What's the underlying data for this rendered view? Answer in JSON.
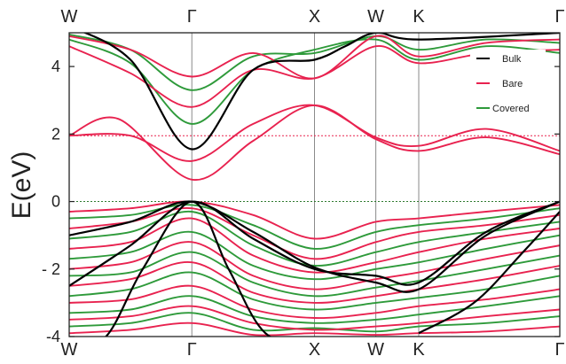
{
  "chart_data": {
    "type": "line",
    "title": "",
    "xlabel": "",
    "ylabel": "E(eV)",
    "ylim": [
      -4,
      5
    ],
    "yticks": [
      {
        "value": -4,
        "label": "-4"
      },
      {
        "value": -2,
        "label": "- 2"
      },
      {
        "value": 0,
        "label": "0"
      },
      {
        "value": 2,
        "label": "2"
      },
      {
        "value": 4,
        "label": "4"
      }
    ],
    "k_path": [
      {
        "label": "W",
        "pos": 0
      },
      {
        "label": "Γ",
        "pos": 1
      },
      {
        "label": "X",
        "pos": 2
      },
      {
        "label": "W",
        "pos": 2.5
      },
      {
        "label": "K",
        "pos": 2.85
      },
      {
        "label": "Γ",
        "pos": 4
      }
    ],
    "vertical_lines_at": [
      1,
      2,
      2.5,
      2.85
    ],
    "reference_lines": [
      {
        "y": 0,
        "style": "dotted",
        "color": "#2f7a2f"
      },
      {
        "y": 1.95,
        "style": "dotted",
        "color": "#e8224f"
      }
    ],
    "legend": {
      "placement": "top-right",
      "entries": [
        "Bulk",
        "Bare",
        "Covered"
      ]
    },
    "grid": false,
    "colors": {
      "Bulk": "#000000",
      "Bare": "#e8224f",
      "Covered": "#2e9a3a"
    },
    "series": [
      {
        "name": "Bulk",
        "bands": [
          {
            "x": [
              0,
              0.5,
              1,
              1.5,
              2,
              2.25,
              2.5,
              2.85,
              4
            ],
            "y": [
              5.2,
              4.2,
              1.55,
              3.9,
              4.2,
              4.6,
              5.0,
              4.8,
              5.0
            ]
          },
          {
            "x": [
              0,
              0.5,
              1,
              1.5,
              2,
              2.5,
              2.85,
              3.4,
              4
            ],
            "y": [
              -1.0,
              -0.6,
              0,
              -0.9,
              -1.95,
              -2.4,
              -2.6,
              -1.0,
              0
            ]
          },
          {
            "x": [
              0,
              0.5,
              1,
              1.5,
              2,
              2.5,
              2.85,
              3.4,
              4
            ],
            "y": [
              -2.5,
              -1.3,
              0,
              -1.1,
              -2.0,
              -2.2,
              -2.4,
              -0.9,
              0
            ]
          },
          {
            "x": [
              0,
              0.3,
              0.6,
              1,
              1.3,
              1.6,
              2
            ],
            "y": [
              -4.3,
              -4.0,
              -2.0,
              0,
              -2.0,
              -3.9,
              -4.3
            ]
          },
          {
            "x": [
              2.85,
              3.3,
              3.7,
              4
            ],
            "y": [
              -3.9,
              -3.0,
              -1.5,
              -0.3
            ]
          }
        ]
      },
      {
        "name": "Bare",
        "bands": [
          {
            "x": [
              0,
              0.5,
              1,
              1.5,
              2,
              2.5,
              2.85,
              3.4,
              4
            ],
            "y": [
              1.95,
              1.95,
              1.2,
              2.3,
              2.85,
              1.9,
              1.65,
              2.15,
              1.5
            ]
          },
          {
            "x": [
              0,
              0.4,
              1,
              1.5,
              2,
              2.5,
              2.85,
              3.4,
              4
            ],
            "y": [
              1.95,
              2.45,
              0.65,
              1.8,
              2.85,
              1.85,
              1.5,
              1.9,
              1.4
            ]
          },
          {
            "x": [
              0,
              0.5,
              1,
              1.5,
              2,
              2.5,
              2.85,
              3.4,
              4
            ],
            "y": [
              4.9,
              4.5,
              3.7,
              4.4,
              3.65,
              4.9,
              4.3,
              4.7,
              4.8
            ]
          },
          {
            "x": [
              0,
              0.5,
              1,
              1.5,
              2,
              2.5,
              2.85,
              3.4,
              4
            ],
            "y": [
              4.6,
              3.8,
              2.8,
              3.9,
              3.65,
              4.6,
              4.1,
              4.4,
              4.5
            ]
          },
          {
            "x": [
              0,
              0.5,
              1,
              1.5,
              2,
              2.5,
              2.85,
              3.4,
              4
            ],
            "y": [
              -0.3,
              -0.2,
              0,
              -0.4,
              -1.1,
              -0.6,
              -0.5,
              -0.3,
              -0.1
            ]
          },
          {
            "x": [
              0,
              0.5,
              1,
              1.5,
              2,
              2.5,
              2.85,
              3.4,
              4
            ],
            "y": [
              -0.8,
              -0.6,
              -0.2,
              -1.0,
              -1.7,
              -1.2,
              -0.9,
              -0.7,
              -0.4
            ]
          },
          {
            "x": [
              0,
              0.5,
              1,
              1.5,
              2,
              2.5,
              2.85,
              3.4,
              4
            ],
            "y": [
              -1.4,
              -1.2,
              -0.5,
              -1.6,
              -2.1,
              -1.8,
              -1.5,
              -1.1,
              -0.8
            ]
          },
          {
            "x": [
              0,
              0.5,
              1,
              1.5,
              2,
              2.5,
              2.85,
              3.4,
              4
            ],
            "y": [
              -2.0,
              -1.8,
              -1.2,
              -2.2,
              -2.6,
              -2.3,
              -2.1,
              -1.7,
              -1.3
            ]
          },
          {
            "x": [
              0,
              0.5,
              1,
              1.5,
              2,
              2.5,
              2.85,
              3.4,
              4
            ],
            "y": [
              -2.5,
              -2.3,
              -1.8,
              -2.7,
              -3.0,
              -2.8,
              -2.6,
              -2.3,
              -1.9
            ]
          },
          {
            "x": [
              0,
              0.5,
              1,
              1.5,
              2,
              2.5,
              2.85,
              3.4,
              4
            ],
            "y": [
              -3.0,
              -2.9,
              -2.5,
              -3.2,
              -3.45,
              -3.3,
              -3.1,
              -2.9,
              -2.6
            ]
          },
          {
            "x": [
              0,
              0.5,
              1,
              1.5,
              2,
              2.5,
              2.85,
              3.4,
              4
            ],
            "y": [
              -3.5,
              -3.4,
              -3.1,
              -3.6,
              -3.8,
              -3.7,
              -3.6,
              -3.4,
              -3.2
            ]
          },
          {
            "x": [
              0,
              0.5,
              1,
              1.5,
              2,
              2.5,
              2.85,
              3.4,
              4
            ],
            "y": [
              -3.9,
              -3.8,
              -3.6,
              -3.95,
              -3.9,
              -3.95,
              -3.9,
              -3.85,
              -3.7
            ]
          }
        ]
      },
      {
        "name": "Covered",
        "bands": [
          {
            "x": [
              0,
              0.5,
              1,
              1.5,
              2,
              2.5,
              2.85,
              3.4,
              4
            ],
            "y": [
              4.8,
              4.1,
              2.3,
              3.9,
              4.5,
              4.8,
              4.2,
              4.6,
              4.4
            ]
          },
          {
            "x": [
              0,
              0.5,
              1,
              1.5,
              2,
              2.5,
              2.85,
              3.4,
              4
            ],
            "y": [
              4.95,
              4.5,
              3.3,
              4.3,
              4.4,
              4.9,
              4.5,
              4.8,
              4.7
            ]
          },
          {
            "x": [
              0,
              0.5,
              1,
              1.5,
              2,
              2.5,
              2.85,
              3.4,
              4
            ],
            "y": [
              -0.5,
              -0.4,
              -0.1,
              -0.7,
              -1.4,
              -0.9,
              -0.7,
              -0.5,
              -0.2
            ]
          },
          {
            "x": [
              0,
              0.5,
              1,
              1.5,
              2,
              2.5,
              2.85,
              3.4,
              4
            ],
            "y": [
              -1.1,
              -0.9,
              -0.3,
              -1.3,
              -1.9,
              -1.5,
              -1.2,
              -0.9,
              -0.6
            ]
          },
          {
            "x": [
              0,
              0.5,
              1,
              1.5,
              2,
              2.5,
              2.85,
              3.4,
              4
            ],
            "y": [
              -1.7,
              -1.5,
              -0.9,
              -1.9,
              -2.3,
              -2.0,
              -1.8,
              -1.4,
              -1.0
            ]
          },
          {
            "x": [
              0,
              0.5,
              1,
              1.5,
              2,
              2.5,
              2.85,
              3.4,
              4
            ],
            "y": [
              -2.2,
              -2.1,
              -1.5,
              -2.4,
              -2.8,
              -2.55,
              -2.35,
              -2.0,
              -1.6
            ]
          },
          {
            "x": [
              0,
              0.5,
              1,
              1.5,
              2,
              2.5,
              2.85,
              3.4,
              4
            ],
            "y": [
              -2.8,
              -2.6,
              -2.1,
              -2.9,
              -3.2,
              -3.0,
              -2.85,
              -2.6,
              -2.2
            ]
          },
          {
            "x": [
              0,
              0.5,
              1,
              1.5,
              2,
              2.5,
              2.85,
              3.4,
              4
            ],
            "y": [
              -3.3,
              -3.2,
              -2.8,
              -3.4,
              -3.6,
              -3.5,
              -3.35,
              -3.1,
              -2.8
            ]
          },
          {
            "x": [
              0,
              0.5,
              1,
              1.5,
              2,
              2.5,
              2.85,
              3.4,
              4
            ],
            "y": [
              -3.7,
              -3.6,
              -3.3,
              -3.8,
              -3.75,
              -3.85,
              -3.7,
              -3.6,
              -3.4
            ]
          }
        ]
      }
    ]
  }
}
